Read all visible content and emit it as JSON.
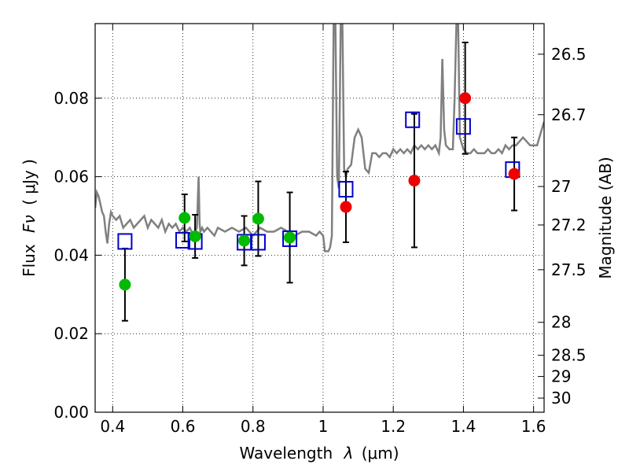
{
  "chart_data": {
    "type": "scatter",
    "xlabel": "Wavelength",
    "xlabel_symbol": "λ",
    "xlabel_unit": "(μm)",
    "ylabel": "Flux",
    "ylabel_symbol": "Fν",
    "ylabel_unit": "( μJy )",
    "ylabel_right": "Magnitude (AB)",
    "xlim": [
      0.35,
      1.63
    ],
    "ylim": [
      0.0,
      0.099
    ],
    "grid": true,
    "x_ticks": [
      {
        "value": 0.4,
        "label": "0.4"
      },
      {
        "value": 0.6,
        "label": "0.6"
      },
      {
        "value": 0.8,
        "label": "0.8"
      },
      {
        "value": 1.0,
        "label": "1"
      },
      {
        "value": 1.2,
        "label": "1.2"
      },
      {
        "value": 1.4,
        "label": "1.4"
      },
      {
        "value": 1.6,
        "label": "1.6"
      }
    ],
    "y_ticks": [
      {
        "value": 0.0,
        "label": "0.00"
      },
      {
        "value": 0.02,
        "label": "0.02"
      },
      {
        "value": 0.04,
        "label": "0.04"
      },
      {
        "value": 0.06,
        "label": "0.06"
      },
      {
        "value": 0.08,
        "label": "0.08"
      }
    ],
    "mag_ticks": [
      {
        "flux": 0.0912,
        "label": "26.5"
      },
      {
        "flux": 0.0758,
        "label": "26.7"
      },
      {
        "flux": 0.0575,
        "label": "27"
      },
      {
        "flux": 0.0477,
        "label": "27.2"
      },
      {
        "flux": 0.0363,
        "label": "27.5"
      },
      {
        "flux": 0.0229,
        "label": "28"
      },
      {
        "flux": 0.0145,
        "label": "28.5"
      },
      {
        "flux": 0.0091,
        "label": "29"
      },
      {
        "flux": 0.0036,
        "label": "30"
      }
    ],
    "colors": {
      "spectrum": "#808080",
      "green_points": "#00bb00",
      "red_points": "#ee0000",
      "model_squares": "#0000cc",
      "error_bars": "#000000",
      "grid": "#000000"
    },
    "spectrum": {
      "x": [
        0.35,
        0.355,
        0.36,
        0.365,
        0.37,
        0.375,
        0.38,
        0.385,
        0.39,
        0.395,
        0.4,
        0.41,
        0.42,
        0.43,
        0.44,
        0.45,
        0.46,
        0.47,
        0.48,
        0.49,
        0.5,
        0.51,
        0.52,
        0.53,
        0.54,
        0.55,
        0.56,
        0.57,
        0.58,
        0.59,
        0.6,
        0.61,
        0.62,
        0.63,
        0.64,
        0.645,
        0.648,
        0.65,
        0.655,
        0.66,
        0.67,
        0.68,
        0.69,
        0.7,
        0.72,
        0.74,
        0.76,
        0.78,
        0.8,
        0.82,
        0.84,
        0.86,
        0.88,
        0.9,
        0.92,
        0.94,
        0.96,
        0.98,
        0.99,
        1.0,
        1.005,
        1.01,
        1.015,
        1.02,
        1.025,
        1.03,
        1.035,
        1.04,
        1.045,
        1.05,
        1.055,
        1.06,
        1.065,
        1.07,
        1.08,
        1.09,
        1.1,
        1.11,
        1.12,
        1.13,
        1.14,
        1.15,
        1.16,
        1.17,
        1.18,
        1.19,
        1.2,
        1.21,
        1.22,
        1.23,
        1.24,
        1.25,
        1.26,
        1.27,
        1.28,
        1.29,
        1.3,
        1.31,
        1.32,
        1.33,
        1.335,
        1.34,
        1.345,
        1.35,
        1.36,
        1.37,
        1.375,
        1.38,
        1.385,
        1.39,
        1.4,
        1.41,
        1.42,
        1.43,
        1.44,
        1.45,
        1.46,
        1.47,
        1.48,
        1.49,
        1.5,
        1.51,
        1.52,
        1.53,
        1.54,
        1.55,
        1.56,
        1.57,
        1.58,
        1.59,
        1.6,
        1.61,
        1.62,
        1.63
      ],
      "y": [
        0.052,
        0.056,
        0.055,
        0.053,
        0.051,
        0.05,
        0.046,
        0.043,
        0.048,
        0.051,
        0.05,
        0.049,
        0.05,
        0.047,
        0.048,
        0.049,
        0.047,
        0.048,
        0.049,
        0.05,
        0.047,
        0.049,
        0.048,
        0.047,
        0.049,
        0.046,
        0.048,
        0.047,
        0.048,
        0.046,
        0.047,
        0.046,
        0.047,
        0.045,
        0.047,
        0.06,
        0.048,
        0.046,
        0.047,
        0.046,
        0.047,
        0.046,
        0.045,
        0.047,
        0.046,
        0.047,
        0.046,
        0.047,
        0.045,
        0.047,
        0.046,
        0.046,
        0.047,
        0.046,
        0.045,
        0.046,
        0.046,
        0.045,
        0.046,
        0.045,
        0.041,
        0.041,
        0.041,
        0.042,
        0.045,
        0.099,
        0.099,
        0.06,
        0.057,
        0.099,
        0.099,
        0.062,
        0.06,
        0.062,
        0.063,
        0.07,
        0.072,
        0.07,
        0.062,
        0.061,
        0.066,
        0.066,
        0.065,
        0.066,
        0.066,
        0.065,
        0.067,
        0.066,
        0.067,
        0.066,
        0.067,
        0.066,
        0.068,
        0.067,
        0.068,
        0.067,
        0.068,
        0.067,
        0.068,
        0.066,
        0.07,
        0.09,
        0.072,
        0.068,
        0.067,
        0.067,
        0.08,
        0.099,
        0.099,
        0.07,
        0.067,
        0.066,
        0.066,
        0.067,
        0.066,
        0.066,
        0.066,
        0.067,
        0.066,
        0.066,
        0.067,
        0.066,
        0.068,
        0.067,
        0.068,
        0.068,
        0.069,
        0.07,
        0.069,
        0.068,
        0.068,
        0.068,
        0.071,
        0.074
      ]
    },
    "observations": [
      {
        "x": 0.435,
        "y": 0.0325,
        "err": 0.0092,
        "color": "green"
      },
      {
        "x": 0.605,
        "y": 0.0495,
        "err": 0.006,
        "color": "green"
      },
      {
        "x": 0.635,
        "y": 0.0448,
        "err": 0.0055,
        "color": "green"
      },
      {
        "x": 0.775,
        "y": 0.0437,
        "err": 0.0063,
        "color": "green"
      },
      {
        "x": 0.815,
        "y": 0.0493,
        "err": 0.0095,
        "color": "green"
      },
      {
        "x": 0.905,
        "y": 0.0445,
        "err": 0.0115,
        "color": "green"
      },
      {
        "x": 1.065,
        "y": 0.0523,
        "err": 0.009,
        "color": "red"
      },
      {
        "x": 1.26,
        "y": 0.059,
        "err": 0.017,
        "color": "red"
      },
      {
        "x": 1.405,
        "y": 0.08,
        "err": 0.0142,
        "color": "red"
      },
      {
        "x": 1.545,
        "y": 0.0607,
        "err": 0.0093,
        "color": "red"
      }
    ],
    "model_points": [
      {
        "x": 0.435,
        "y": 0.0435
      },
      {
        "x": 0.6,
        "y": 0.0438
      },
      {
        "x": 0.635,
        "y": 0.0435
      },
      {
        "x": 0.775,
        "y": 0.0433
      },
      {
        "x": 0.815,
        "y": 0.0433
      },
      {
        "x": 0.905,
        "y": 0.0442
      },
      {
        "x": 1.065,
        "y": 0.0568
      },
      {
        "x": 1.255,
        "y": 0.0745
      },
      {
        "x": 1.4,
        "y": 0.0728
      },
      {
        "x": 1.54,
        "y": 0.0618
      }
    ]
  }
}
